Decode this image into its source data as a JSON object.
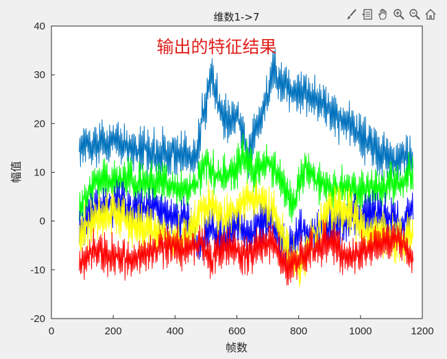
{
  "toolbar": {
    "icons": [
      "brush-icon",
      "data-tips-icon",
      "pan-hand-icon",
      "zoom-in-icon",
      "zoom-out-icon",
      "home-icon"
    ]
  },
  "chart_data": {
    "type": "line",
    "title": "维数1->7",
    "xlabel": "帧数",
    "ylabel": "幅值",
    "annotation": "输出的特征结果",
    "xlim": [
      0,
      1200
    ],
    "ylim": [
      -20,
      40
    ],
    "xticks": [
      0,
      200,
      400,
      600,
      800,
      1000,
      1200
    ],
    "yticks": [
      -20,
      -10,
      0,
      10,
      20,
      30,
      40
    ],
    "grid": false,
    "colors": {
      "dim1": "#0072bd",
      "dim2": "#00ff00",
      "dim3": "#0000ff",
      "dim4": "#ffff00",
      "dim5": "#ff0000",
      "annotation": "#e0201b"
    },
    "series": [
      {
        "color_key": "dim1",
        "x": [
          90,
          140,
          200,
          260,
          320,
          380,
          440,
          470,
          490,
          520,
          540,
          570,
          600,
          640,
          690,
          720,
          760,
          820,
          880,
          940,
          1000,
          1060,
          1120,
          1170
        ],
        "y": [
          15,
          16,
          17,
          15,
          14,
          14,
          13,
          14,
          22,
          30,
          24,
          20,
          22,
          14,
          23,
          31,
          27,
          26,
          24,
          21,
          17,
          14,
          12,
          13
        ]
      },
      {
        "color_key": "dim2",
        "x": [
          90,
          140,
          200,
          260,
          320,
          380,
          440,
          470,
          500,
          540,
          580,
          620,
          660,
          700,
          740,
          780,
          820,
          880,
          940,
          1000,
          1060,
          1120,
          1170
        ],
        "y": [
          3,
          8,
          9,
          8,
          8,
          7,
          6,
          8,
          12,
          9,
          10,
          13,
          10,
          12,
          9,
          3,
          11,
          7,
          7,
          6,
          7,
          8,
          10
        ]
      },
      {
        "color_key": "dim3",
        "x": [
          90,
          140,
          200,
          260,
          320,
          380,
          440,
          480,
          520,
          560,
          600,
          640,
          680,
          720,
          760,
          800,
          840,
          900,
          960,
          1020,
          1080,
          1140,
          1170
        ],
        "y": [
          -2,
          3,
          4,
          2,
          3,
          1,
          0,
          -5,
          -2,
          -4,
          0,
          -3,
          0,
          -1,
          -6,
          -2,
          -3,
          -1,
          0,
          2,
          1,
          0,
          3
        ]
      },
      {
        "color_key": "dim4",
        "x": [
          90,
          140,
          200,
          260,
          320,
          380,
          440,
          480,
          520,
          560,
          600,
          640,
          680,
          720,
          760,
          800,
          840,
          900,
          960,
          1020,
          1080,
          1140,
          1170
        ],
        "y": [
          -3,
          1,
          2,
          -1,
          -2,
          -3,
          -4,
          2,
          4,
          0,
          3,
          5,
          4,
          2,
          -5,
          -10,
          -4,
          3,
          2,
          -2,
          -3,
          -4,
          -2
        ]
      },
      {
        "color_key": "dim5",
        "x": [
          90,
          140,
          200,
          260,
          320,
          380,
          440,
          480,
          520,
          560,
          600,
          640,
          680,
          720,
          760,
          800,
          840,
          900,
          960,
          1020,
          1080,
          1140,
          1170
        ],
        "y": [
          -9,
          -6,
          -7,
          -8,
          -6,
          -5,
          -6,
          -4,
          -8,
          -5,
          -6,
          -7,
          -5,
          -4,
          -10,
          -8,
          -6,
          -4,
          -7,
          -6,
          -4,
          -5,
          -8
        ]
      }
    ]
  }
}
